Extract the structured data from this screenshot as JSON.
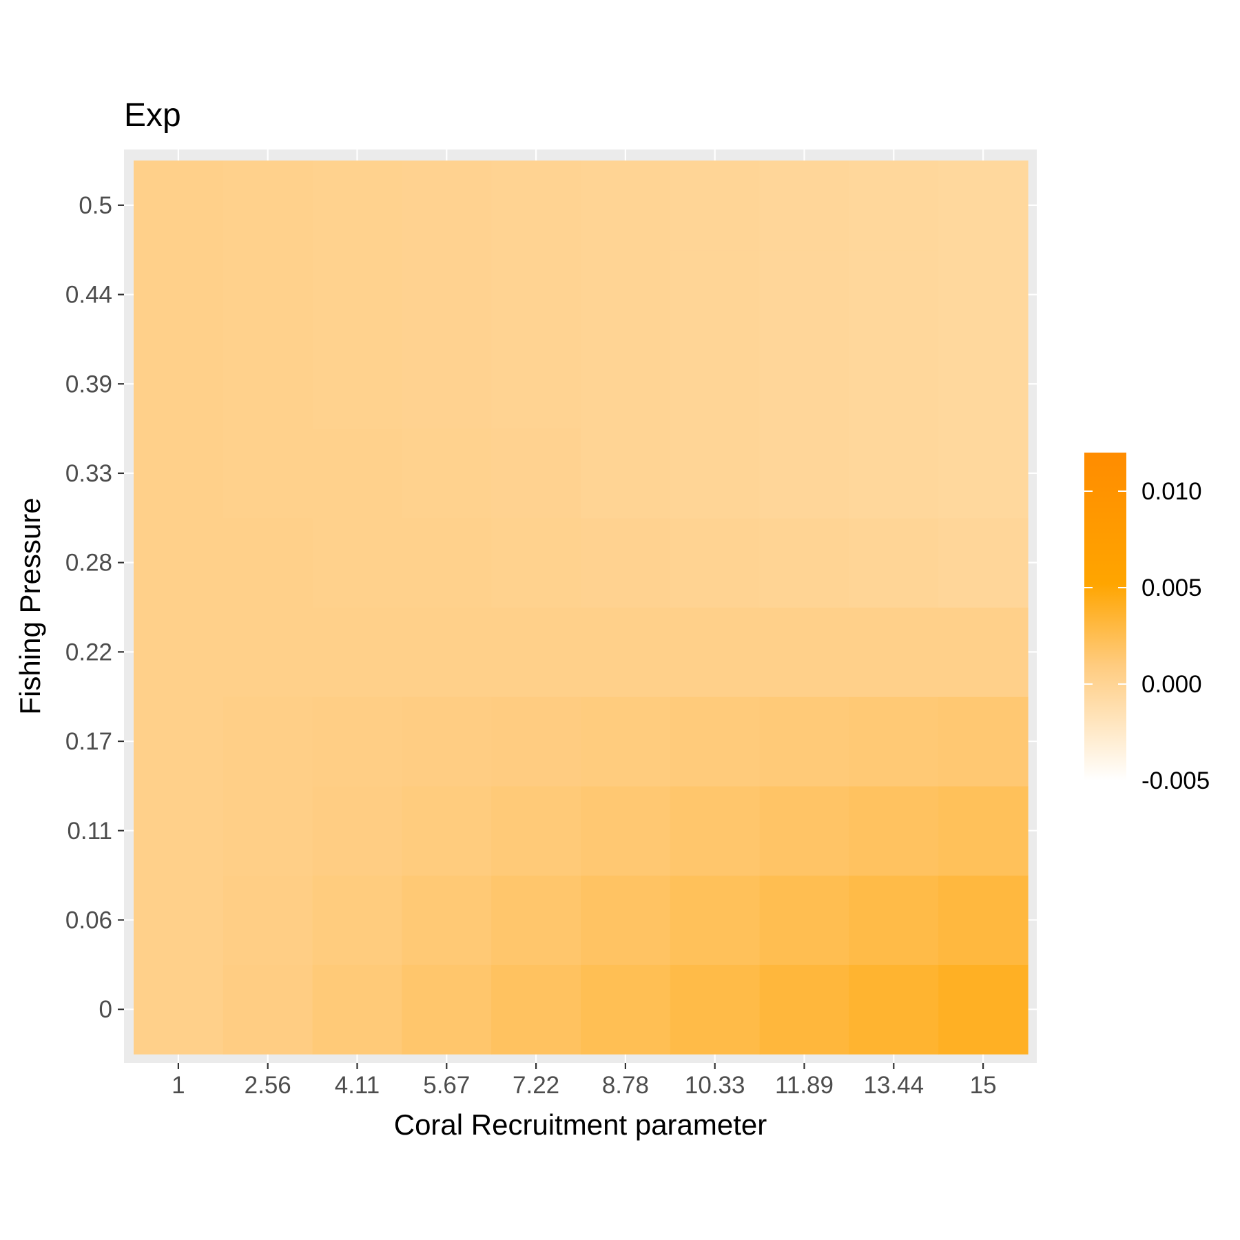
{
  "chart_data": {
    "type": "heatmap",
    "title": "Exp",
    "xlabel": "Coral Recruitment parameter",
    "ylabel": "Fishing Pressure",
    "x_ticks": [
      "1",
      "2.56",
      "4.11",
      "5.67",
      "7.22",
      "8.78",
      "10.33",
      "11.89",
      "13.44",
      "15"
    ],
    "y_ticks": [
      "0",
      "0.06",
      "0.11",
      "0.17",
      "0.22",
      "0.28",
      "0.33",
      "0.39",
      "0.44",
      "0.5"
    ],
    "x": [
      1,
      2.56,
      4.11,
      5.67,
      7.22,
      8.78,
      10.33,
      11.89,
      13.44,
      15
    ],
    "y": [
      0,
      0.06,
      0.11,
      0.17,
      0.22,
      0.28,
      0.33,
      0.39,
      0.44,
      0.5
    ],
    "z": [
      [
        0.0005,
        0.0008,
        0.0012,
        0.0016,
        0.002,
        0.0024,
        0.0028,
        0.0032,
        0.0036,
        0.004
      ],
      [
        0.0005,
        0.0007,
        0.001,
        0.0013,
        0.0016,
        0.0019,
        0.0022,
        0.0025,
        0.0028,
        0.0031
      ],
      [
        0.0005,
        0.0006,
        0.0008,
        0.001,
        0.0012,
        0.0014,
        0.0016,
        0.0018,
        0.002,
        0.0022
      ],
      [
        0.0005,
        0.0006,
        0.0007,
        0.0008,
        0.0009,
        0.001,
        0.0011,
        0.0012,
        0.0013,
        0.0014
      ],
      [
        0.0005,
        0.0005,
        0.0005,
        0.0005,
        0.0005,
        0.0005,
        0.0005,
        0.0005,
        0.0005,
        0.0005
      ],
      [
        0.0005,
        0.0005,
        0.0004,
        0.0004,
        0.0003,
        0.0002,
        0.0001,
        0.0,
        -0.0001,
        -0.0002
      ],
      [
        0.0005,
        0.0004,
        0.0004,
        0.0003,
        0.0002,
        0.0,
        -0.0001,
        -0.0002,
        -0.0003,
        -0.0004
      ],
      [
        0.0005,
        0.0004,
        0.0003,
        0.0002,
        0.0001,
        0.0,
        -0.0001,
        -0.0002,
        -0.0003,
        -0.0004
      ],
      [
        0.0005,
        0.0004,
        0.0003,
        0.0002,
        0.0001,
        0.0,
        -0.0001,
        -0.0002,
        -0.0003,
        -0.0004
      ],
      [
        0.0005,
        0.0004,
        0.0003,
        0.0002,
        0.0001,
        0.0,
        -0.0001,
        -0.0002,
        -0.0003,
        -0.0004
      ]
    ],
    "colorbar": {
      "min": -0.005,
      "max": 0.012,
      "ticks": [
        -0.005,
        0.0,
        0.005,
        0.01
      ],
      "tick_labels": [
        "-0.005",
        "0.000",
        "0.005",
        "0.010"
      ],
      "colors": [
        "#ffffff",
        "#ffcc80",
        "#ffa500",
        "#ff8c00"
      ]
    },
    "grid": true,
    "panel_background": "#ebebeb",
    "legend_position": "right"
  }
}
